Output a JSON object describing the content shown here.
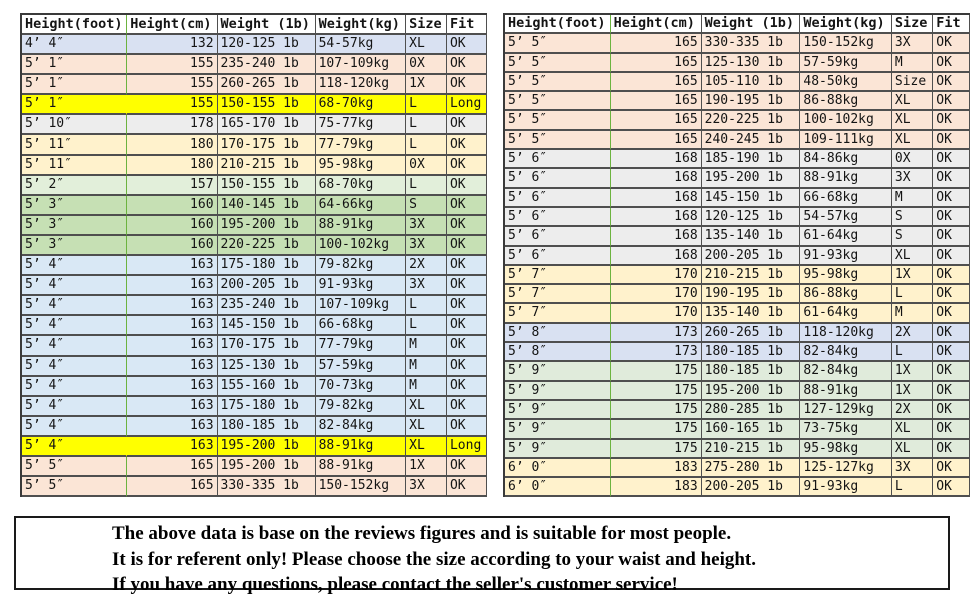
{
  "colors": {
    "lavender": "#D9E1F2",
    "peach": "#FBE5D6",
    "yellow": "#FFFF00",
    "gray": "#EDEDED",
    "cream": "#FFF2CC",
    "palegreen": "#E2EFDA",
    "green": "#C6E0B4",
    "blue": "#D9E8F5",
    "sage": "#E0EBDB",
    "grid_green": "#6cb33f",
    "border_dark": "#4f4f4f"
  },
  "headers": [
    "Height(foot)",
    "Height(cm)",
    "Weight (1b)",
    "Weight(kg)",
    "Size",
    "Fit"
  ],
  "left_table": {
    "rows": [
      [
        "4’ 4″",
        "132",
        "120-125 1b",
        "54-57kg",
        "XL",
        "OK",
        "lavender"
      ],
      [
        "5’ 1″",
        "155",
        "235-240 1b",
        "107-109kg",
        "0X",
        "OK",
        "peach"
      ],
      [
        "5’ 1″",
        "155",
        "260-265 1b",
        "118-120kg",
        "1X",
        "OK",
        "peach"
      ],
      [
        "5’ 1″",
        "155",
        "150-155 1b",
        "68-70kg",
        "L",
        "Long",
        "yellow"
      ],
      [
        "5’ 10″",
        "178",
        "165-170 1b",
        "75-77kg",
        "L",
        "OK",
        "gray"
      ],
      [
        "5’ 11″",
        "180",
        "170-175 1b",
        "77-79kg",
        "L",
        "OK",
        "cream"
      ],
      [
        "5’ 11″",
        "180",
        "210-215 1b",
        "95-98kg",
        "0X",
        "OK",
        "cream"
      ],
      [
        "5’ 2″",
        "157",
        "150-155 1b",
        "68-70kg",
        "L",
        "OK",
        "palegreen"
      ],
      [
        "5’ 3″",
        "160",
        "140-145 1b",
        "64-66kg",
        "S",
        "OK",
        "green"
      ],
      [
        "5’ 3″",
        "160",
        "195-200 1b",
        "88-91kg",
        "3X",
        "OK",
        "green"
      ],
      [
        "5’ 3″",
        "160",
        "220-225 1b",
        "100-102kg",
        "3X",
        "OK",
        "green"
      ],
      [
        "5’ 4″",
        "163",
        "175-180 1b",
        "79-82kg",
        "2X",
        "OK",
        "blue"
      ],
      [
        "5’ 4″",
        "163",
        "200-205 1b",
        "91-93kg",
        "3X",
        "OK",
        "blue"
      ],
      [
        "5’ 4″",
        "163",
        "235-240 1b",
        "107-109kg",
        "L",
        "OK",
        "blue"
      ],
      [
        "5’ 4″",
        "163",
        "145-150 1b",
        "66-68kg",
        "L",
        "OK",
        "blue"
      ],
      [
        "5’ 4″",
        "163",
        "170-175 1b",
        "77-79kg",
        "M",
        "OK",
        "blue"
      ],
      [
        "5’ 4″",
        "163",
        "125-130 1b",
        "57-59kg",
        "M",
        "OK",
        "blue"
      ],
      [
        "5’ 4″",
        "163",
        "155-160 1b",
        "70-73kg",
        "M",
        "OK",
        "blue"
      ],
      [
        "5’ 4″",
        "163",
        "175-180 1b",
        "79-82kg",
        "XL",
        "OK",
        "blue"
      ],
      [
        "5’ 4″",
        "163",
        "180-185 1b",
        "82-84kg",
        "XL",
        "OK",
        "blue"
      ],
      [
        "5’ 4″",
        "163",
        "195-200 1b",
        "88-91kg",
        "XL",
        "Long",
        "yellow"
      ],
      [
        "5’ 5″",
        "165",
        "195-200 1b",
        "88-91kg",
        "1X",
        "OK",
        "peach"
      ],
      [
        "5’ 5″",
        "165",
        "330-335 1b",
        "150-152kg",
        "3X",
        "OK",
        "peach"
      ]
    ]
  },
  "right_table": {
    "rows": [
      [
        "5’ 5″",
        "165",
        "330-335 1b",
        "150-152kg",
        "3X",
        "OK",
        "peach"
      ],
      [
        "5’ 5″",
        "165",
        "125-130 1b",
        "57-59kg",
        "M",
        "OK",
        "peach"
      ],
      [
        "5’ 5″",
        "165",
        "105-110 1b",
        "48-50kg",
        "Size",
        "OK",
        "peach"
      ],
      [
        "5’ 5″",
        "165",
        "190-195 1b",
        "86-88kg",
        "XL",
        "OK",
        "peach"
      ],
      [
        "5’ 5″",
        "165",
        "220-225 1b",
        "100-102kg",
        "XL",
        "OK",
        "peach"
      ],
      [
        "5’ 5″",
        "165",
        "240-245 1b",
        "109-111kg",
        "XL",
        "OK",
        "peach"
      ],
      [
        "5’ 6″",
        "168",
        "185-190 1b",
        "84-86kg",
        "0X",
        "OK",
        "gray"
      ],
      [
        "5’ 6″",
        "168",
        "195-200 1b",
        "88-91kg",
        "3X",
        "OK",
        "gray"
      ],
      [
        "5’ 6″",
        "168",
        "145-150 1b",
        "66-68kg",
        "M",
        "OK",
        "gray"
      ],
      [
        "5’ 6″",
        "168",
        "120-125 1b",
        "54-57kg",
        "S",
        "OK",
        "gray"
      ],
      [
        "5’ 6″",
        "168",
        "135-140 1b",
        "61-64kg",
        "S",
        "OK",
        "gray"
      ],
      [
        "5’ 6″",
        "168",
        "200-205 1b",
        "91-93kg",
        "XL",
        "OK",
        "gray"
      ],
      [
        "5’ 7″",
        "170",
        "210-215 1b",
        "95-98kg",
        "1X",
        "OK",
        "cream"
      ],
      [
        "5’ 7″",
        "170",
        "190-195 1b",
        "86-88kg",
        "L",
        "OK",
        "cream"
      ],
      [
        "5’ 7″",
        "170",
        "135-140 1b",
        "61-64kg",
        "M",
        "OK",
        "cream"
      ],
      [
        "5’ 8″",
        "173",
        "260-265 1b",
        "118-120kg",
        "2X",
        "OK",
        "lavender"
      ],
      [
        "5’ 8″",
        "173",
        "180-185 1b",
        "82-84kg",
        "L",
        "OK",
        "lavender"
      ],
      [
        "5’ 9″",
        "175",
        "180-185 1b",
        "82-84kg",
        "1X",
        "OK",
        "sage"
      ],
      [
        "5’ 9″",
        "175",
        "195-200 1b",
        "88-91kg",
        "1X",
        "OK",
        "sage"
      ],
      [
        "5’ 9″",
        "175",
        "280-285 1b",
        "127-129kg",
        "2X",
        "OK",
        "sage"
      ],
      [
        "5’ 9″",
        "175",
        "160-165 1b",
        "73-75kg",
        "XL",
        "OK",
        "sage"
      ],
      [
        "5’ 9″",
        "175",
        "210-215 1b",
        "95-98kg",
        "XL",
        "OK",
        "sage"
      ],
      [
        "6’ 0″",
        "183",
        "275-280 1b",
        "125-127kg",
        "3X",
        "OK",
        "cream"
      ],
      [
        "6’ 0″",
        "183",
        "200-205 1b",
        "91-93kg",
        "L",
        "OK",
        "cream"
      ]
    ]
  },
  "note": {
    "lines": [
      "The above data is base on the reviews figures and is suitable for most people.",
      "It is for referent only! Please choose the size according to your waist and height.",
      "If you have any questions, please contact the seller's customer service!"
    ]
  }
}
